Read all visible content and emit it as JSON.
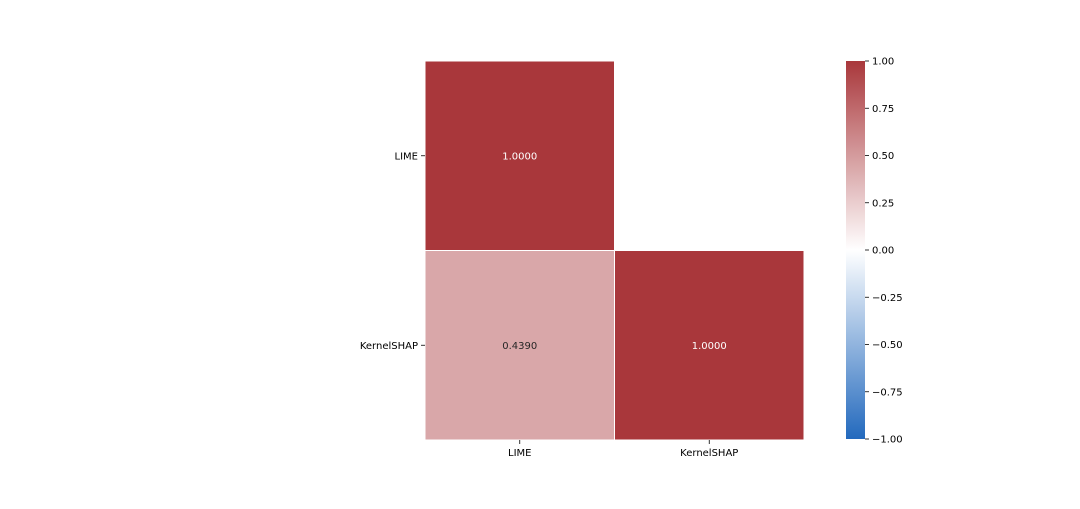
{
  "chart_data": {
    "type": "heatmap",
    "title": "",
    "xlabel": "",
    "ylabel": "",
    "x_labels": [
      "LIME",
      "KernelSHAP"
    ],
    "y_labels": [
      "LIME",
      "KernelSHAP"
    ],
    "mask": "upper-triangle",
    "cells": [
      {
        "row": 0,
        "col": 0,
        "value": 1.0,
        "label": "1.0000"
      },
      {
        "row": 1,
        "col": 0,
        "value": 0.439,
        "label": "0.4390"
      },
      {
        "row": 1,
        "col": 1,
        "value": 1.0,
        "label": "1.0000"
      }
    ],
    "colorbar": {
      "range": [
        -1.0,
        1.0
      ],
      "ticks": [
        1.0,
        0.75,
        0.5,
        0.25,
        0.0,
        -0.25,
        -0.5,
        -0.75,
        -1.0
      ],
      "tick_labels": [
        "1.00",
        "0.75",
        "0.50",
        "0.25",
        "0.00",
        "−0.25",
        "−0.50",
        "−0.75",
        "−1.00"
      ],
      "colormap": "vlag",
      "colors": [
        "#2369bd",
        "#ffffff",
        "#a9373b"
      ]
    }
  }
}
